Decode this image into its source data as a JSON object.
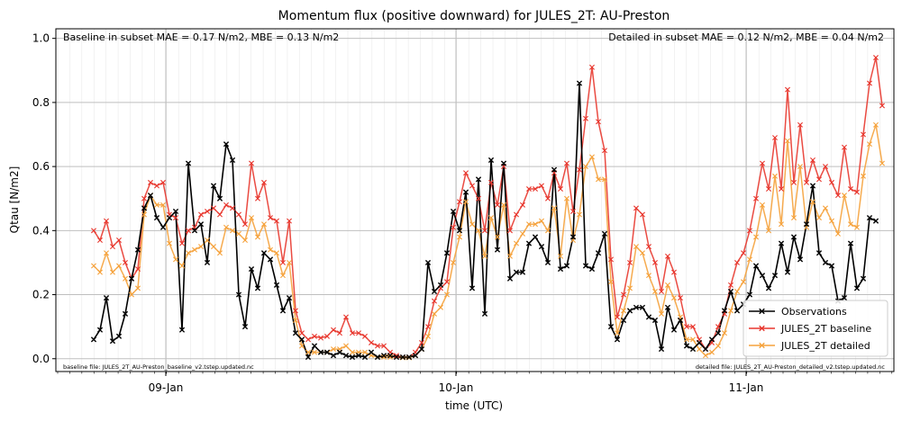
{
  "chart_data": {
    "type": "line",
    "title": "Momentum flux (positive downward) for JULES_2T: AU-Preston",
    "xlabel": "time (UTC)",
    "ylabel": "Qtau [N/m2]",
    "ylim": [
      -0.04,
      1.03
    ],
    "yticks": [
      "0.0",
      "0.2",
      "0.4",
      "0.6",
      "0.8",
      "1.0"
    ],
    "xticks": [
      "09-Jan",
      "10-Jan",
      "11-Jan"
    ],
    "grid": true,
    "legend_position": "lower right",
    "annotations": {
      "top_left": "Baseline in subset MAE = 0.17 N/m2, MBE = 0.13 N/m2",
      "top_right": "Detailed in subset MAE = 0.12 N/m2, MBE = 0.04 N/m2",
      "bottom_left": "baseline file: JULES_2T_AU-Preston_baseline_v2.tstep.updated.nc",
      "bottom_right": "detailed file: JULES_2T_AU-Preston_detailed_v2.tstep.updated.nc"
    },
    "series": [
      {
        "name": "Observations",
        "color": "#000000",
        "values": [
          0.06,
          0.09,
          0.19,
          0.055,
          0.07,
          0.14,
          0.25,
          0.34,
          0.47,
          0.51,
          0.44,
          0.41,
          0.44,
          0.46,
          0.09,
          0.61,
          0.4,
          0.42,
          0.3,
          0.54,
          0.5,
          0.67,
          0.62,
          0.2,
          0.1,
          0.28,
          0.22,
          0.33,
          0.31,
          0.23,
          0.15,
          0.19,
          0.08,
          0.06,
          0.005,
          0.04,
          0.02,
          0.02,
          0.01,
          0.02,
          0.01,
          0.005,
          0.01,
          0.005,
          0.02,
          0.005,
          0.01,
          0.01,
          0.005,
          0.005,
          0.005,
          0.01,
          0.03,
          0.3,
          0.21,
          0.23,
          0.33,
          0.46,
          0.4,
          0.52,
          0.22,
          0.56,
          0.14,
          0.62,
          0.34,
          0.61,
          0.25,
          0.27,
          0.27,
          0.36,
          0.38,
          0.35,
          0.3,
          0.59,
          0.28,
          0.29,
          0.38,
          0.86,
          0.29,
          0.28,
          0.33,
          0.39,
          0.1,
          0.06,
          0.12,
          0.15,
          0.16,
          0.16,
          0.13,
          0.12,
          0.03,
          0.16,
          0.09,
          0.12,
          0.04,
          0.03,
          0.05,
          0.03,
          0.06,
          0.08,
          0.15,
          0.21,
          0.15,
          0.17,
          0.2,
          0.29,
          0.26,
          0.22,
          0.26,
          0.36,
          0.27,
          0.38,
          0.31,
          0.42,
          0.54,
          0.33,
          0.3,
          0.29,
          0.18,
          0.19,
          0.36,
          0.22,
          0.25,
          0.44,
          0.43
        ]
      },
      {
        "name": "JULES_2T baseline",
        "color": "#e8372e",
        "values": [
          0.4,
          0.37,
          0.43,
          0.35,
          0.37,
          0.3,
          0.25,
          0.28,
          0.5,
          0.55,
          0.54,
          0.55,
          0.45,
          0.44,
          0.36,
          0.4,
          0.41,
          0.45,
          0.46,
          0.47,
          0.45,
          0.48,
          0.47,
          0.45,
          0.42,
          0.61,
          0.5,
          0.55,
          0.44,
          0.43,
          0.3,
          0.43,
          0.15,
          0.08,
          0.06,
          0.07,
          0.065,
          0.07,
          0.09,
          0.08,
          0.13,
          0.08,
          0.08,
          0.07,
          0.05,
          0.04,
          0.04,
          0.02,
          0.01,
          0.005,
          0.005,
          0.02,
          0.05,
          0.1,
          0.18,
          0.22,
          0.24,
          0.41,
          0.49,
          0.58,
          0.54,
          0.5,
          0.4,
          0.55,
          0.48,
          0.6,
          0.4,
          0.45,
          0.48,
          0.53,
          0.53,
          0.54,
          0.5,
          0.58,
          0.53,
          0.61,
          0.46,
          0.59,
          0.75,
          0.91,
          0.74,
          0.65,
          0.31,
          0.13,
          0.2,
          0.3,
          0.47,
          0.45,
          0.35,
          0.3,
          0.21,
          0.32,
          0.27,
          0.19,
          0.1,
          0.1,
          0.06,
          0.03,
          0.05,
          0.1,
          0.14,
          0.23,
          0.3,
          0.33,
          0.4,
          0.5,
          0.61,
          0.53,
          0.69,
          0.53,
          0.84,
          0.55,
          0.73,
          0.55,
          0.62,
          0.56,
          0.6,
          0.55,
          0.51,
          0.66,
          0.53,
          0.52,
          0.7,
          0.86,
          0.94,
          0.79
        ]
      },
      {
        "name": "JULES_2T detailed",
        "color": "#f5a23c",
        "values": [
          0.29,
          0.27,
          0.33,
          0.27,
          0.29,
          0.25,
          0.2,
          0.22,
          0.45,
          0.51,
          0.48,
          0.48,
          0.36,
          0.31,
          0.29,
          0.33,
          0.34,
          0.35,
          0.37,
          0.35,
          0.33,
          0.41,
          0.4,
          0.39,
          0.37,
          0.44,
          0.38,
          0.42,
          0.34,
          0.33,
          0.26,
          0.3,
          0.12,
          0.04,
          0.02,
          0.02,
          0.02,
          0.02,
          0.03,
          0.03,
          0.04,
          0.02,
          0.02,
          0.02,
          0.01,
          0.005,
          0.005,
          0.005,
          0.005,
          0.003,
          0.003,
          0.01,
          0.03,
          0.07,
          0.14,
          0.16,
          0.2,
          0.3,
          0.38,
          0.49,
          0.42,
          0.4,
          0.32,
          0.44,
          0.38,
          0.48,
          0.32,
          0.36,
          0.39,
          0.42,
          0.42,
          0.43,
          0.4,
          0.47,
          0.32,
          0.5,
          0.37,
          0.45,
          0.6,
          0.63,
          0.56,
          0.56,
          0.24,
          0.08,
          0.15,
          0.22,
          0.35,
          0.33,
          0.26,
          0.21,
          0.14,
          0.23,
          0.19,
          0.13,
          0.06,
          0.06,
          0.03,
          0.01,
          0.02,
          0.04,
          0.08,
          0.15,
          0.21,
          0.24,
          0.31,
          0.38,
          0.48,
          0.4,
          0.57,
          0.42,
          0.68,
          0.44,
          0.6,
          0.41,
          0.49,
          0.44,
          0.47,
          0.43,
          0.39,
          0.51,
          0.42,
          0.41,
          0.57,
          0.67,
          0.73,
          0.61
        ]
      }
    ]
  }
}
